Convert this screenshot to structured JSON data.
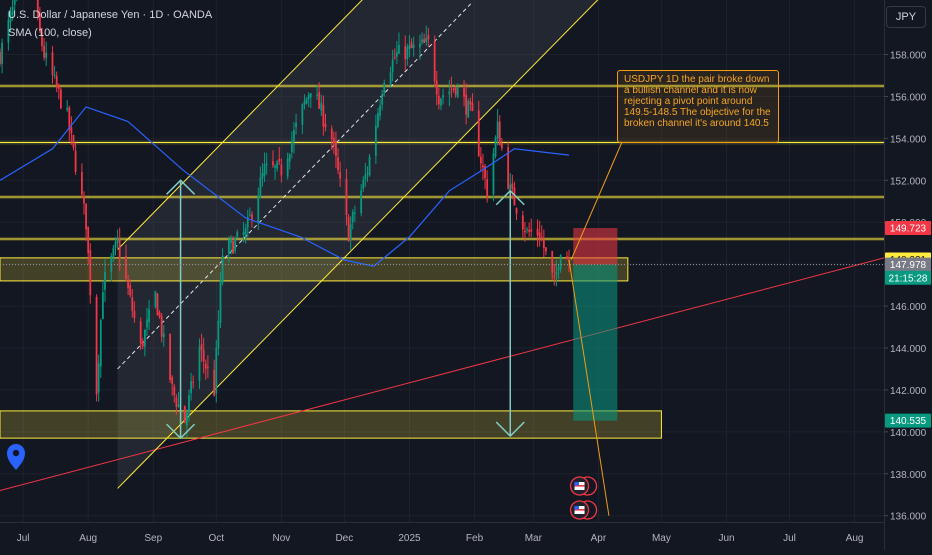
{
  "header": {
    "title": "U.S. Dollar / Japanese Yen · 1D · OANDA",
    "indicator": "SMA (100, close)"
  },
  "currency_button": "JPY",
  "annotation": "USDJPY 1D the pair broke down a bullish channel and it is now rejecting a pivot point around 149.5-148.5 The objective for the broken channel it's around 140.5",
  "price_tags": [
    {
      "value": 149.723,
      "label": "149.723",
      "bg": "#f23645",
      "fg": "#ffffff"
    },
    {
      "value": 148.221,
      "label": "148.221",
      "bg": "#ffeb3b",
      "fg": "#131722"
    },
    {
      "value": 147.978,
      "label": "147.978",
      "bg": "#787b86",
      "fg": "#ffffff"
    },
    {
      "value": 147.35,
      "label": "21:15:28",
      "bg": "#089981",
      "fg": "#ffffff"
    },
    {
      "value": 140.535,
      "label": "140.535",
      "bg": "#089981",
      "fg": "#ffffff"
    }
  ],
  "colors": {
    "background": "#131722",
    "up": "#089981",
    "down": "#f23645",
    "sma": "#2962ff",
    "channel": "#ffeb3b",
    "zone": "#ffeb3b",
    "trendline": "#f23645",
    "arrow": "#80cbc4",
    "annotation": "#f39c12"
  },
  "chart_data": {
    "type": "candlestick",
    "symbol": "USDJPY",
    "timeframe": "1D",
    "yaxis": {
      "ticks": [
        136,
        138,
        140,
        142,
        144,
        146,
        148,
        150,
        152,
        154,
        156,
        158
      ],
      "tick_labels": [
        "136.000",
        "138.000",
        "140.000",
        "142.000",
        "144.000",
        "146.000",
        "148.000",
        "150.000",
        "152.000",
        "154.000",
        "156.000",
        "158.000"
      ],
      "ylim": [
        135.7,
        160.6
      ]
    },
    "xaxis": {
      "labels": [
        "Jul",
        "Aug",
        "Sep",
        "Oct",
        "Nov",
        "Dec",
        "2025",
        "Feb",
        "Mar",
        "Apr",
        "May",
        "Jun",
        "Jul",
        "Aug"
      ],
      "range": [
        "2024-06-20",
        "2025-08-15"
      ]
    },
    "anchors": [
      [
        "2024-06-20",
        158.0
      ],
      [
        "2024-06-28",
        160.8
      ],
      [
        "2024-07-03",
        161.9
      ],
      [
        "2024-07-11",
        158.0
      ],
      [
        "2024-07-22",
        155.0
      ],
      [
        "2024-07-31",
        150.0
      ],
      [
        "2024-08-05",
        142.0
      ],
      [
        "2024-08-08",
        147.0
      ],
      [
        "2024-08-15",
        149.0
      ],
      [
        "2024-08-26",
        144.0
      ],
      [
        "2024-09-02",
        146.5
      ],
      [
        "2024-09-10",
        142.0
      ],
      [
        "2024-09-16",
        140.5
      ],
      [
        "2024-09-23",
        144.0
      ],
      [
        "2024-09-30",
        142.0
      ],
      [
        "2024-10-04",
        148.5
      ],
      [
        "2024-10-15",
        149.5
      ],
      [
        "2024-10-24",
        152.5
      ],
      [
        "2024-11-01",
        152.5
      ],
      [
        "2024-11-15",
        156.5
      ],
      [
        "2024-11-25",
        154.0
      ],
      [
        "2024-12-03",
        149.5
      ],
      [
        "2024-12-12",
        152.5
      ],
      [
        "2024-12-20",
        157.0
      ],
      [
        "2024-12-26",
        158.0
      ],
      [
        "2025-01-10",
        158.5
      ],
      [
        "2025-01-15",
        156.0
      ],
      [
        "2025-01-23",
        156.5
      ],
      [
        "2025-01-31",
        155.0
      ],
      [
        "2025-02-07",
        151.5
      ],
      [
        "2025-02-12",
        154.5
      ],
      [
        "2025-02-18",
        151.5
      ],
      [
        "2025-02-26",
        149.5
      ],
      [
        "2025-03-04",
        149.5
      ],
      [
        "2025-03-11",
        147.0
      ],
      [
        "2025-03-14",
        148.8
      ],
      [
        "2025-03-18",
        148.2
      ]
    ],
    "sma100": [
      [
        "2024-06-20",
        152.0
      ],
      [
        "2024-07-15",
        153.5
      ],
      [
        "2024-07-31",
        155.5
      ],
      [
        "2024-08-20",
        154.8
      ],
      [
        "2024-09-15",
        152.5
      ],
      [
        "2024-10-15",
        150.2
      ],
      [
        "2024-11-10",
        149.3
      ],
      [
        "2024-12-01",
        148.2
      ],
      [
        "2024-12-15",
        147.9
      ],
      [
        "2025-01-01",
        149.3
      ],
      [
        "2025-01-20",
        151.5
      ],
      [
        "2025-02-05",
        152.5
      ],
      [
        "2025-02-20",
        153.5
      ],
      [
        "2025-03-18",
        153.2
      ]
    ],
    "channel": {
      "lower": [
        [
          "2024-08-15",
          137.3
        ],
        [
          "2025-08-15",
          174.5
        ]
      ],
      "upper": [
        [
          "2024-08-15",
          148.7
        ],
        [
          "2025-08-15",
          186.0
        ]
      ],
      "mid": [
        [
          "2024-08-15",
          143.0
        ],
        [
          "2025-01-31",
          160.5
        ]
      ]
    },
    "trendline": [
      [
        "2024-06-20",
        137.2
      ],
      [
        "2025-08-15",
        148.3
      ]
    ],
    "levels": [
      156.5,
      153.8,
      151.2,
      149.2
    ],
    "zones": [
      {
        "from": "2024-06-20",
        "to": "2025-04-15",
        "top": 148.3,
        "bottom": 147.2
      },
      {
        "from": "2024-06-20",
        "to": "2025-05-01",
        "top": 141.0,
        "bottom": 139.7
      }
    ],
    "arrows": [
      {
        "date": "2024-09-14",
        "from": 152.0,
        "to": 139.7
      },
      {
        "date": "2025-02-18",
        "from": 151.5,
        "to": 139.8
      }
    ],
    "position": {
      "from": "2025-03-20",
      "to": "2025-04-10",
      "entry": 147.978,
      "stop": 149.723,
      "target": 140.535
    },
    "projection": [
      [
        "2025-03-18",
        148.2
      ],
      [
        "2025-04-06",
        136.0
      ]
    ],
    "events_date": "2025-03-23"
  }
}
